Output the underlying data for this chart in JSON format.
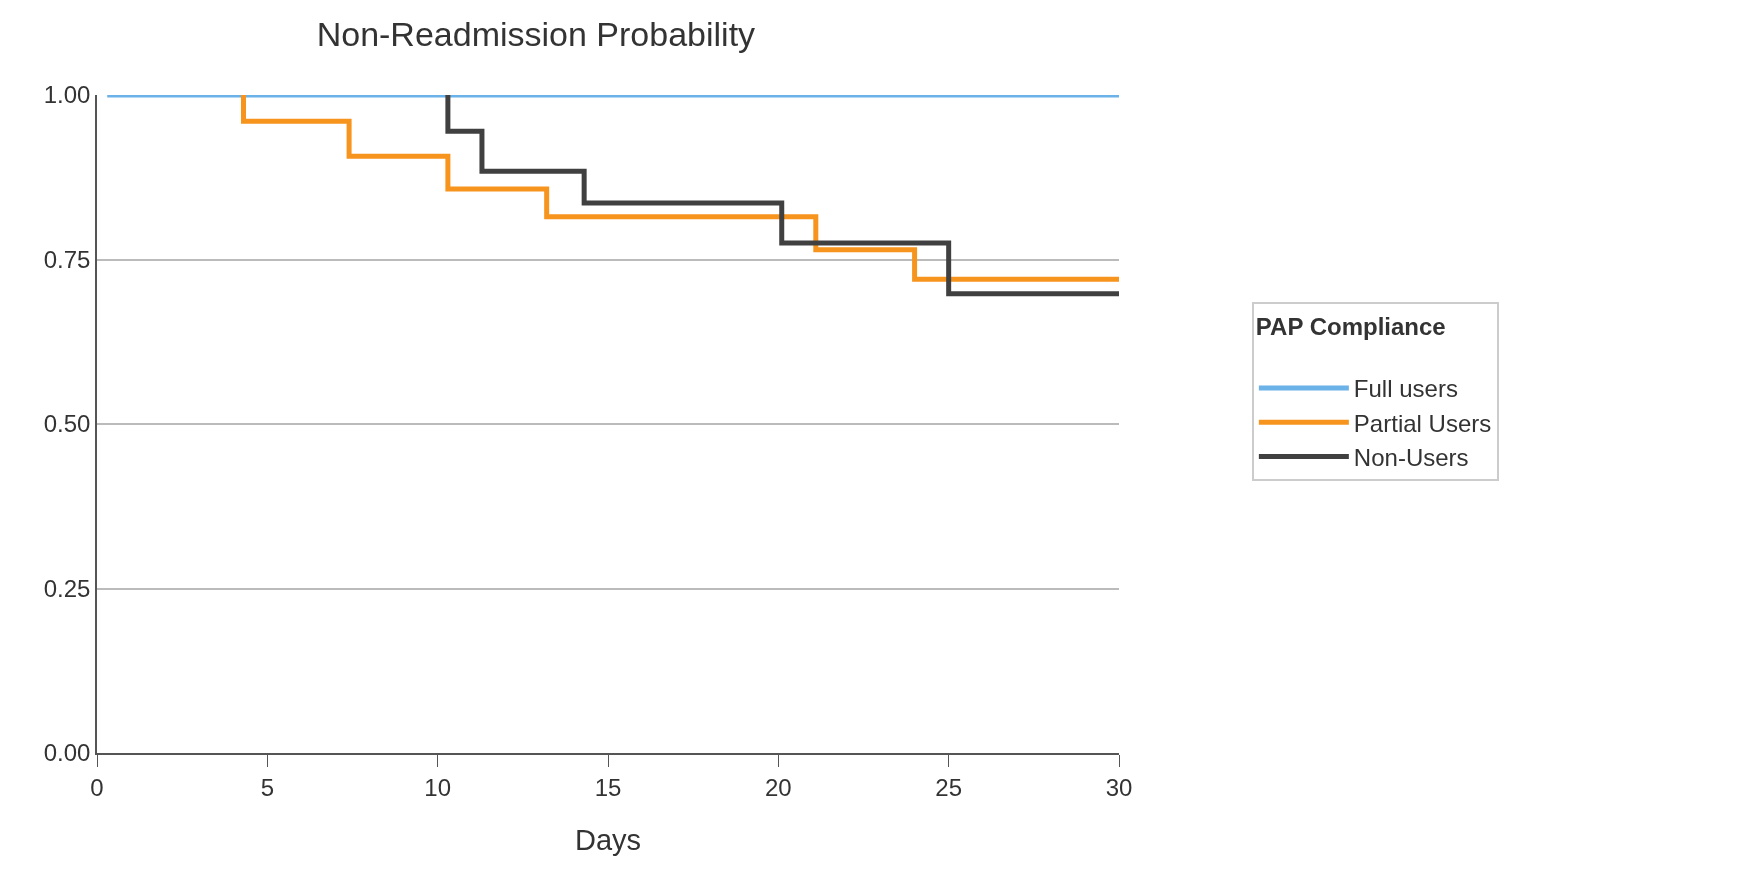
{
  "chart_data": {
    "type": "step",
    "title": "Non-Readmission Probability",
    "xlabel": "Days",
    "legend_title": "PAP Compliance",
    "xlim": [
      0,
      30
    ],
    "xticks": [
      0,
      5,
      10,
      15,
      20,
      25,
      30
    ],
    "ylim": [
      0,
      1
    ],
    "yticks": [
      {
        "value": 0,
        "label": "0.00"
      },
      {
        "value": 0.25,
        "label": "0.25"
      },
      {
        "value": 0.5,
        "label": "0.50"
      },
      {
        "value": 0.75,
        "label": "0.75"
      },
      {
        "value": 1,
        "label": "1.00"
      }
    ],
    "grid": "y",
    "legend": "right",
    "line_style": "solid",
    "marker": "none",
    "series": [
      {
        "name": "Full users",
        "color": "#6ab2e7",
        "x": [
          0.3,
          30
        ],
        "values": [
          1,
          1
        ]
      },
      {
        "name": "Partial Users",
        "color": "#f7941d",
        "x": [
          4.3,
          7.4,
          10.3,
          13.2,
          21.1,
          24.0,
          30
        ],
        "values": [
          1,
          0.96,
          0.907,
          0.857,
          0.815,
          0.765,
          0.72
        ]
      },
      {
        "name": "Non-Users",
        "color": "#404040",
        "x": [
          10.3,
          11.3,
          14.3,
          20.1,
          25.0,
          30
        ],
        "values": [
          1,
          0.945,
          0.884,
          0.836,
          0.775,
          0.698
        ]
      }
    ]
  }
}
